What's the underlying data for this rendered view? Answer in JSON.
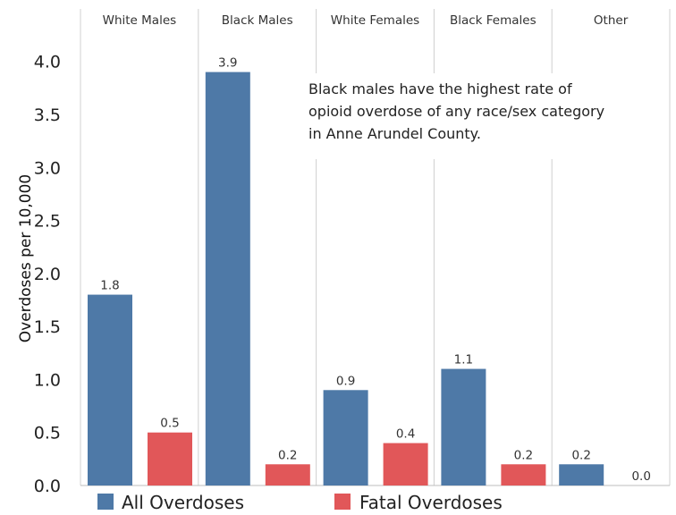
{
  "chart_data": {
    "type": "bar",
    "categories": [
      "White Males",
      "Black Males",
      "White Females",
      "Black Females",
      "Other"
    ],
    "series": [
      {
        "name": "All Overdoses",
        "color": "#4e79a7",
        "values": [
          1.8,
          3.9,
          0.9,
          1.1,
          0.2
        ],
        "labels": [
          "1.8",
          "3.9",
          "0.9",
          "1.1",
          "0.2"
        ]
      },
      {
        "name": "Fatal Overdoses",
        "color": "#e15759",
        "values": [
          0.5,
          0.2,
          0.4,
          0.2,
          0.0
        ],
        "labels": [
          "0.5",
          "0.2",
          "0.4",
          "0.2",
          "0.0"
        ]
      }
    ],
    "ylabel": "Overdoses per 10,000",
    "ylim": [
      0,
      4.2
    ],
    "yticks": [
      "0.0",
      "0.5",
      "1.0",
      "1.5",
      "2.0",
      "2.5",
      "3.0",
      "3.5",
      "4.0"
    ],
    "annotation": [
      "Black males have the highest rate of",
      "opioid overdose of any race/sex category",
      "in Anne Arundel County."
    ],
    "legend_position": "bottom"
  }
}
